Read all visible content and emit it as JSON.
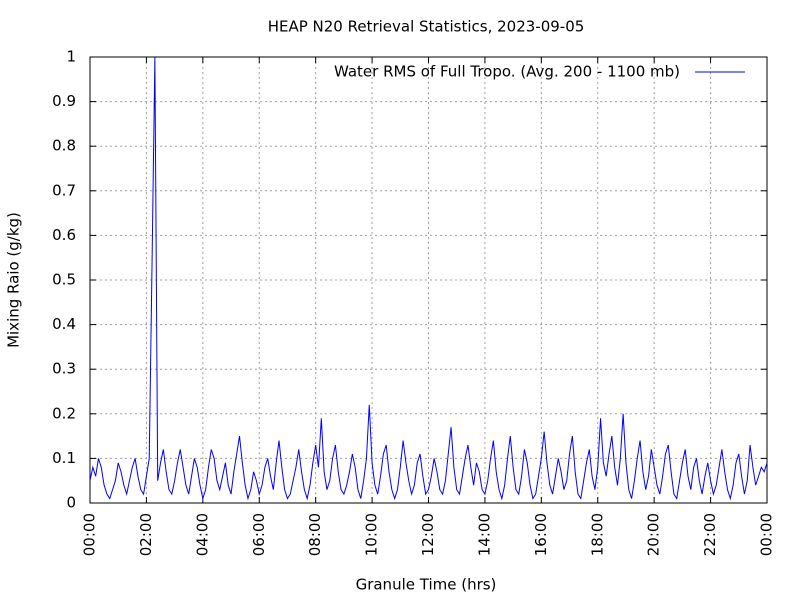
{
  "chart_data": {
    "type": "line",
    "title": "HEAP N20 Retrieval Statistics, 2023-09-05",
    "xlabel": "Granule Time (hrs)",
    "ylabel": "Mixing Raio (g/kg)",
    "xlim": [
      0,
      24
    ],
    "ylim": [
      0,
      1
    ],
    "xticks": [
      {
        "value": 0,
        "label": "00:00"
      },
      {
        "value": 2,
        "label": "02:00"
      },
      {
        "value": 4,
        "label": "04:00"
      },
      {
        "value": 6,
        "label": "06:00"
      },
      {
        "value": 8,
        "label": "08:00"
      },
      {
        "value": 10,
        "label": "10:00"
      },
      {
        "value": 12,
        "label": "12:00"
      },
      {
        "value": 14,
        "label": "14:00"
      },
      {
        "value": 16,
        "label": "16:00"
      },
      {
        "value": 18,
        "label": "18:00"
      },
      {
        "value": 20,
        "label": "20:00"
      },
      {
        "value": 22,
        "label": "22:00"
      },
      {
        "value": 24,
        "label": "00:00"
      }
    ],
    "yticks": [
      0,
      0.1,
      0.2,
      0.3,
      0.4,
      0.5,
      0.6,
      0.7,
      0.8,
      0.9,
      1
    ],
    "grid": true,
    "legend": "upper right",
    "x": [
      0,
      0.1,
      0.2,
      0.3,
      0.4,
      0.5,
      0.6,
      0.7,
      0.8,
      0.9,
      1,
      1.1,
      1.2,
      1.3,
      1.4,
      1.5,
      1.6,
      1.7,
      1.8,
      1.9,
      2,
      2.1,
      2.2,
      2.3,
      2.4,
      2.5,
      2.6,
      2.7,
      2.8,
      2.9,
      3,
      3.1,
      3.2,
      3.3,
      3.4,
      3.5,
      3.6,
      3.7,
      3.8,
      3.9,
      4,
      4.1,
      4.2,
      4.3,
      4.4,
      4.5,
      4.6,
      4.7,
      4.8,
      4.9,
      5,
      5.1,
      5.2,
      5.3,
      5.4,
      5.5,
      5.6,
      5.7,
      5.8,
      5.9,
      6,
      6.1,
      6.2,
      6.3,
      6.4,
      6.5,
      6.6,
      6.7,
      6.8,
      6.9,
      7,
      7.1,
      7.2,
      7.3,
      7.4,
      7.5,
      7.6,
      7.7,
      7.8,
      7.9,
      8,
      8.1,
      8.2,
      8.3,
      8.4,
      8.5,
      8.6,
      8.7,
      8.8,
      8.9,
      9,
      9.1,
      9.2,
      9.3,
      9.4,
      9.5,
      9.6,
      9.7,
      9.8,
      9.9,
      10,
      10.1,
      10.2,
      10.3,
      10.4,
      10.5,
      10.6,
      10.7,
      10.8,
      10.9,
      11,
      11.1,
      11.2,
      11.3,
      11.4,
      11.5,
      11.6,
      11.7,
      11.8,
      11.9,
      12,
      12.1,
      12.2,
      12.3,
      12.4,
      12.5,
      12.6,
      12.7,
      12.8,
      12.9,
      13,
      13.1,
      13.2,
      13.3,
      13.4,
      13.5,
      13.6,
      13.7,
      13.8,
      13.9,
      14,
      14.1,
      14.2,
      14.3,
      14.4,
      14.5,
      14.6,
      14.7,
      14.8,
      14.9,
      15,
      15.1,
      15.2,
      15.3,
      15.4,
      15.5,
      15.6,
      15.7,
      15.8,
      15.9,
      16,
      16.1,
      16.2,
      16.3,
      16.4,
      16.5,
      16.6,
      16.7,
      16.8,
      16.9,
      17,
      17.1,
      17.2,
      17.3,
      17.4,
      17.5,
      17.6,
      17.7,
      17.8,
      17.9,
      18,
      18.1,
      18.2,
      18.3,
      18.4,
      18.5,
      18.6,
      18.7,
      18.8,
      18.9,
      19,
      19.1,
      19.2,
      19.3,
      19.4,
      19.5,
      19.6,
      19.7,
      19.8,
      19.9,
      20,
      20.1,
      20.2,
      20.3,
      20.4,
      20.5,
      20.6,
      20.7,
      20.8,
      20.9,
      21,
      21.1,
      21.2,
      21.3,
      21.4,
      21.5,
      21.6,
      21.7,
      21.8,
      21.9,
      22,
      22.1,
      22.2,
      22.3,
      22.4,
      22.5,
      22.6,
      22.7,
      22.8,
      22.9,
      23,
      23.1,
      23.2,
      23.3,
      23.4,
      23.5,
      23.6,
      23.7,
      23.8,
      23.9,
      24
    ],
    "series": [
      {
        "name": "Water RMS of Full Tropo. (Avg. 200 - 1100 mb)",
        "color": "#0000ff",
        "values": [
          0.05,
          0.08,
          0.06,
          0.1,
          0.08,
          0.04,
          0.02,
          0.01,
          0.03,
          0.05,
          0.09,
          0.07,
          0.04,
          0.02,
          0.05,
          0.08,
          0.1,
          0.06,
          0.03,
          0.02,
          0.06,
          0.1,
          0.54,
          1.0,
          0.05,
          0.09,
          0.12,
          0.07,
          0.03,
          0.02,
          0.05,
          0.09,
          0.12,
          0.08,
          0.04,
          0.02,
          0.06,
          0.1,
          0.08,
          0.04,
          0.01,
          0.03,
          0.08,
          0.12,
          0.1,
          0.05,
          0.03,
          0.06,
          0.09,
          0.04,
          0.02,
          0.07,
          0.11,
          0.15,
          0.09,
          0.04,
          0.01,
          0.03,
          0.07,
          0.05,
          0.02,
          0.04,
          0.08,
          0.1,
          0.06,
          0.03,
          0.09,
          0.14,
          0.08,
          0.03,
          0.01,
          0.02,
          0.05,
          0.08,
          0.12,
          0.07,
          0.03,
          0.01,
          0.04,
          0.09,
          0.13,
          0.08,
          0.19,
          0.07,
          0.03,
          0.05,
          0.1,
          0.13,
          0.07,
          0.03,
          0.02,
          0.04,
          0.07,
          0.11,
          0.08,
          0.03,
          0.01,
          0.05,
          0.1,
          0.22,
          0.09,
          0.04,
          0.02,
          0.06,
          0.11,
          0.13,
          0.07,
          0.03,
          0.01,
          0.03,
          0.08,
          0.14,
          0.09,
          0.05,
          0.02,
          0.04,
          0.09,
          0.11,
          0.06,
          0.02,
          0.03,
          0.06,
          0.1,
          0.07,
          0.03,
          0.02,
          0.05,
          0.11,
          0.17,
          0.08,
          0.03,
          0.02,
          0.06,
          0.1,
          0.13,
          0.08,
          0.04,
          0.09,
          0.07,
          0.03,
          0.02,
          0.05,
          0.1,
          0.14,
          0.07,
          0.03,
          0.01,
          0.04,
          0.1,
          0.15,
          0.08,
          0.03,
          0.02,
          0.06,
          0.12,
          0.09,
          0.04,
          0.01,
          0.02,
          0.06,
          0.1,
          0.16,
          0.09,
          0.04,
          0.02,
          0.06,
          0.1,
          0.07,
          0.03,
          0.05,
          0.11,
          0.15,
          0.07,
          0.02,
          0.01,
          0.05,
          0.09,
          0.12,
          0.06,
          0.03,
          0.08,
          0.19,
          0.09,
          0.06,
          0.11,
          0.15,
          0.08,
          0.04,
          0.1,
          0.2,
          0.09,
          0.03,
          0.01,
          0.05,
          0.1,
          0.14,
          0.07,
          0.03,
          0.06,
          0.12,
          0.08,
          0.04,
          0.02,
          0.06,
          0.11,
          0.13,
          0.07,
          0.02,
          0.01,
          0.05,
          0.09,
          0.12,
          0.06,
          0.03,
          0.08,
          0.1,
          0.05,
          0.02,
          0.06,
          0.09,
          0.05,
          0.02,
          0.04,
          0.08,
          0.12,
          0.07,
          0.03,
          0.01,
          0.04,
          0.09,
          0.11,
          0.06,
          0.02,
          0.05,
          0.13,
          0.08,
          0.04,
          0.06,
          0.08,
          0.07,
          0.09
        ]
      }
    ]
  }
}
